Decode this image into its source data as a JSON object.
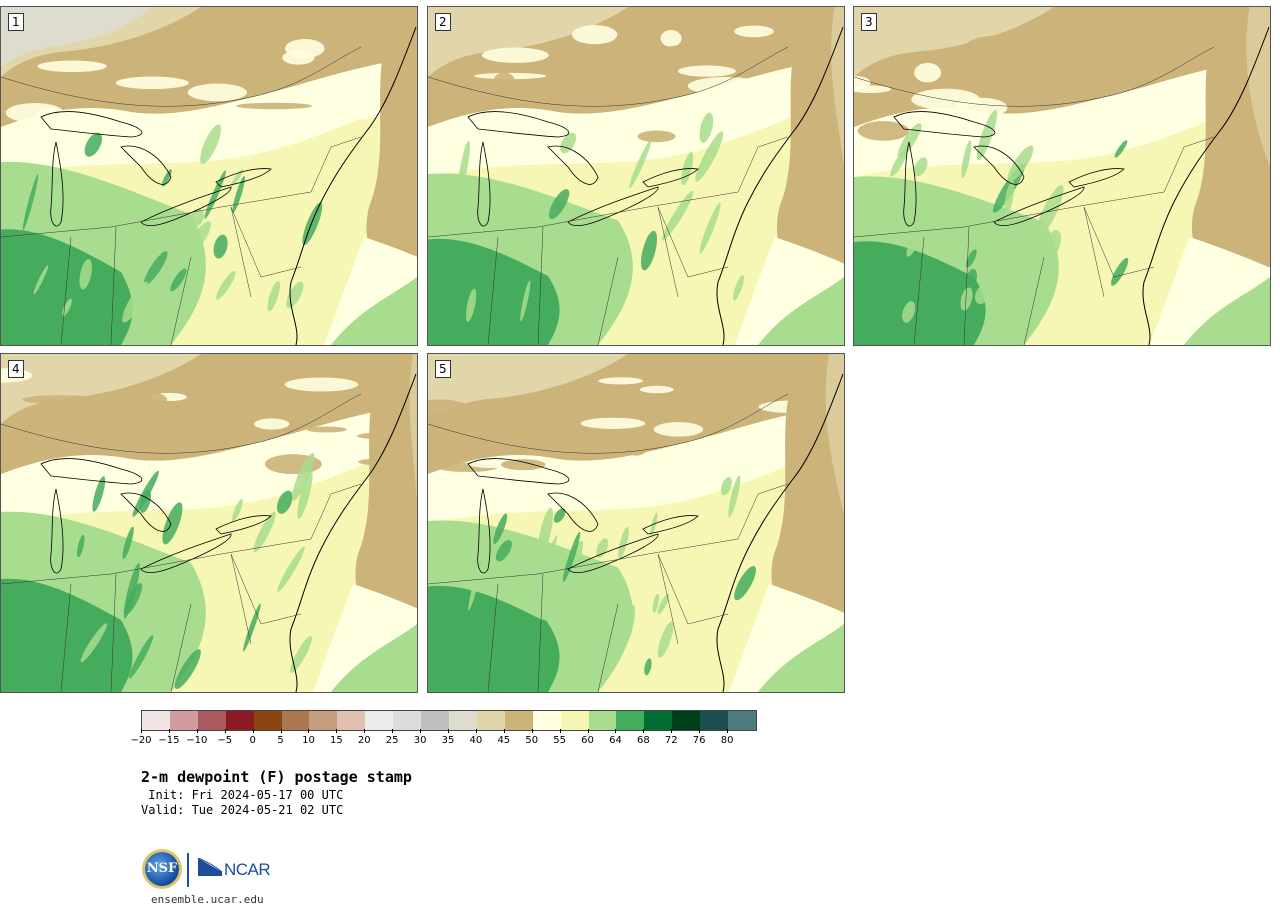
{
  "panels": [
    {
      "label": "1",
      "left_moist": 0.75,
      "east_dry": 0.3
    },
    {
      "label": "2",
      "left_moist": 0.55,
      "east_dry": 0.45
    },
    {
      "label": "3",
      "left_moist": 0.5,
      "east_dry": 0.55
    },
    {
      "label": "4",
      "left_moist": 0.7,
      "east_dry": 0.4
    },
    {
      "label": "5",
      "left_moist": 0.55,
      "east_dry": 0.5
    }
  ],
  "colorbar": {
    "colors": [
      "#f0e4e4",
      "#d19a9f",
      "#aa5a5f",
      "#8b1a22",
      "#8b4513",
      "#ab7650",
      "#c79d80",
      "#e0c0b0",
      "#ebebeb",
      "#dcdcdc",
      "#bebebe",
      "#dedcce",
      "#e1d5aa",
      "#cbb37a",
      "#ffffe1",
      "#f7f7b5",
      "#a8dc8e",
      "#45ac5e",
      "#006d32",
      "#00401c",
      "#1b4f50",
      "#4d7a7d"
    ],
    "tick_labels": [
      "−20",
      "−15",
      "−10",
      "−5",
      "0",
      "5",
      "10",
      "15",
      "20",
      "25",
      "30",
      "35",
      "40",
      "45",
      "50",
      "55",
      "60",
      "64",
      "68",
      "72",
      "76",
      "80"
    ]
  },
  "title": "2-m dewpoint (F) postage stamp",
  "init": " Init: Fri 2024-05-17 00 UTC",
  "valid": "Valid: Tue 2024-05-21 02 UTC",
  "logo": {
    "nsf": "NSF",
    "ncar": "NCAR"
  },
  "url": "ensemble.ucar.edu"
}
